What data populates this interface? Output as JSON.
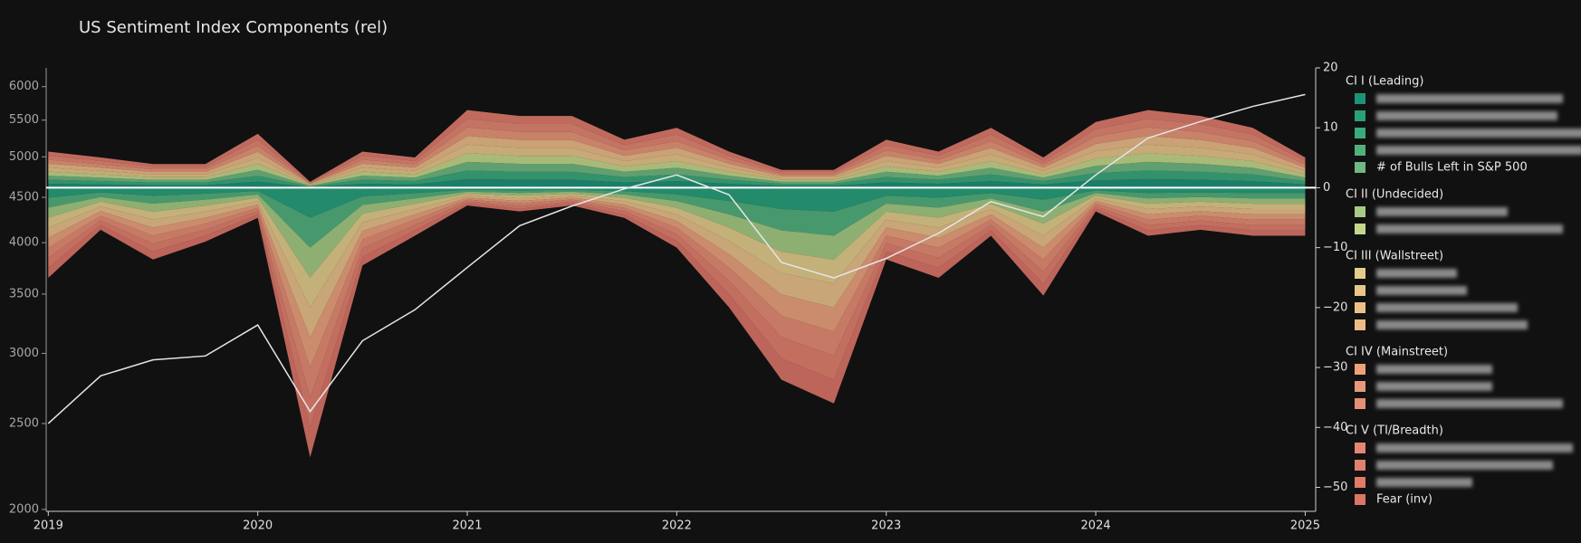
{
  "chart_data": {
    "type": "area",
    "title": "US Sentiment Index Components (rel)",
    "x": [
      2019,
      2019.25,
      2019.5,
      2019.75,
      2020,
      2020.25,
      2020.5,
      2020.75,
      2021,
      2021.25,
      2021.5,
      2021.75,
      2022,
      2022.25,
      2022.5,
      2022.75,
      2023,
      2023.25,
      2023.5,
      2023.75,
      2024,
      2024.25,
      2024.5,
      2024.75,
      2025
    ],
    "xlim": [
      2018.99,
      2025.05
    ],
    "xticks": [
      2019,
      2020,
      2021,
      2022,
      2023,
      2024,
      2025
    ],
    "ylim": [
      1990,
      6300
    ],
    "yticks": [
      2000,
      2500,
      3000,
      3500,
      4000,
      4500,
      5000,
      5500,
      6000
    ],
    "log_scale": true,
    "y2lim": [
      -54,
      20
    ],
    "y2ticks": [
      {
        "value": -50,
        "label": "−50"
      },
      {
        "value": -40,
        "label": "−40"
      },
      {
        "value": -30,
        "label": "−30"
      },
      {
        "value": -20,
        "label": "−20"
      },
      {
        "value": -10,
        "label": "−10"
      },
      0,
      10,
      20
    ],
    "series": [
      {
        "group": "CI I (Leading)",
        "color": "#1e9278",
        "axis": "y2",
        "values": [
          0.67,
          0.56,
          0.44,
          0.44,
          1,
          0.11,
          0.67,
          0.56,
          1.44,
          1.33,
          1.33,
          0.89,
          1.11,
          0.67,
          0.33,
          0.33,
          0.89,
          0.67,
          1.11,
          0.56,
          1.22,
          1.44,
          1.33,
          1.11,
          0.56
        ]
      },
      {
        "group": "CI I (Leading)",
        "color": "#27a07b",
        "axis": "y2",
        "values": [
          -1.67,
          -0.78,
          -1.33,
          -1,
          -0.56,
          -5,
          -1.44,
          -0.89,
          -0.33,
          -0.44,
          -0.33,
          -0.56,
          -1.11,
          -2.22,
          -3.56,
          -4,
          -1.33,
          -1.67,
          -0.89,
          -2,
          -0.44,
          -0.89,
          -0.78,
          -0.89,
          -0.89
        ]
      },
      {
        "group": "CI I (Leading)",
        "color": "#3aa97d",
        "axis": "y2",
        "values": [
          0.67,
          0.56,
          0.44,
          0.44,
          1,
          0.11,
          0.67,
          0.56,
          1.44,
          1.33,
          1.33,
          0.89,
          1.11,
          0.67,
          0.33,
          0.33,
          0.89,
          0.67,
          1.11,
          0.56,
          1.22,
          1.44,
          1.33,
          1.11,
          0.56
        ]
      },
      {
        "group": "CI I (Leading)",
        "color": "#52b07e",
        "axis": "y2",
        "values": [
          -1.67,
          -0.78,
          -1.33,
          -1,
          -0.56,
          -5,
          -1.44,
          -0.89,
          -0.33,
          -0.44,
          -0.33,
          -0.56,
          -1.11,
          -2.22,
          -3.56,
          -4,
          -1.33,
          -1.67,
          -0.89,
          -2,
          -0.44,
          -0.89,
          -0.78,
          -0.89,
          -0.89
        ]
      },
      {
        "group": "CI I (Leading)",
        "name": "# of Bulls Left in S&P 500",
        "color": "#6fb880",
        "axis": "y2",
        "values": [
          0.67,
          0.56,
          0.44,
          0.44,
          1,
          0.11,
          0.67,
          0.56,
          1.44,
          1.33,
          1.33,
          0.89,
          1.11,
          0.67,
          0.33,
          0.33,
          0.89,
          0.67,
          1.11,
          0.56,
          1.22,
          1.44,
          1.33,
          1.11,
          0.56
        ]
      },
      {
        "group": "CI II (Undecided)",
        "color": "#a5cb84",
        "axis": "y2",
        "values": [
          -1.67,
          -0.78,
          -1.33,
          -1,
          -0.56,
          -5,
          -1.44,
          -0.89,
          -0.33,
          -0.44,
          -0.33,
          -0.56,
          -1.11,
          -2.22,
          -3.56,
          -4,
          -1.33,
          -1.67,
          -0.89,
          -2,
          -0.44,
          -0.89,
          -0.78,
          -0.89,
          -0.89
        ]
      },
      {
        "group": "CI II (Undecided)",
        "color": "#c4d78b",
        "axis": "y2",
        "values": [
          0.67,
          0.56,
          0.44,
          0.44,
          1,
          0.11,
          0.67,
          0.56,
          1.44,
          1.33,
          1.33,
          0.89,
          1.11,
          0.67,
          0.33,
          0.33,
          0.89,
          0.67,
          1.11,
          0.56,
          1.22,
          1.44,
          1.33,
          1.11,
          0.56
        ]
      },
      {
        "group": "CI III (Wallstreet)",
        "color": "#e4cc8c",
        "axis": "y2",
        "values": [
          -1.67,
          -0.78,
          -1.33,
          -1,
          -0.56,
          -5,
          -1.44,
          -0.89,
          -0.33,
          -0.44,
          -0.33,
          -0.56,
          -1.11,
          -2.22,
          -3.56,
          -4,
          -1.33,
          -1.67,
          -0.89,
          -2,
          -0.44,
          -0.89,
          -0.78,
          -0.89,
          -0.89
        ]
      },
      {
        "group": "CI III (Wallstreet)",
        "color": "#e8c68a",
        "axis": "y2",
        "values": [
          0.67,
          0.56,
          0.44,
          0.44,
          1,
          0.11,
          0.67,
          0.56,
          1.44,
          1.33,
          1.33,
          0.89,
          1.11,
          0.67,
          0.33,
          0.33,
          0.89,
          0.67,
          1.11,
          0.56,
          1.22,
          1.44,
          1.33,
          1.11,
          0.56
        ]
      },
      {
        "group": "CI III (Wallstreet)",
        "color": "#eac189",
        "axis": "y2",
        "values": [
          -1.67,
          -0.78,
          -1.33,
          -1,
          -0.56,
          -5,
          -1.44,
          -0.89,
          -0.33,
          -0.44,
          -0.33,
          -0.56,
          -1.11,
          -2.22,
          -3.56,
          -4,
          -1.33,
          -1.67,
          -0.89,
          -2,
          -0.44,
          -0.89,
          -0.78,
          -0.89,
          -0.89
        ]
      },
      {
        "group": "CI III (Wallstreet)",
        "color": "#ebbc87",
        "axis": "y2",
        "values": [
          0.67,
          0.56,
          0.44,
          0.44,
          1,
          0.11,
          0.67,
          0.56,
          1.44,
          1.33,
          1.33,
          0.89,
          1.11,
          0.67,
          0.33,
          0.33,
          0.89,
          0.67,
          1.11,
          0.56,
          1.22,
          1.44,
          1.33,
          1.11,
          0.56
        ]
      },
      {
        "group": "CI IV (Mainstreet)",
        "color": "#eba27c",
        "axis": "y2",
        "values": [
          -1.67,
          -0.78,
          -1.33,
          -1,
          -0.56,
          -5,
          -1.44,
          -0.89,
          -0.33,
          -0.44,
          -0.33,
          -0.56,
          -1.11,
          -2.22,
          -3.56,
          -4,
          -1.33,
          -1.67,
          -0.89,
          -2,
          -0.44,
          -0.89,
          -0.78,
          -0.89,
          -0.89
        ]
      },
      {
        "group": "CI IV (Mainstreet)",
        "color": "#e99779",
        "axis": "y2",
        "values": [
          0.67,
          0.56,
          0.44,
          0.44,
          1,
          0.11,
          0.67,
          0.56,
          1.44,
          1.33,
          1.33,
          0.89,
          1.11,
          0.67,
          0.33,
          0.33,
          0.89,
          0.67,
          1.11,
          0.56,
          1.22,
          1.44,
          1.33,
          1.11,
          0.56
        ]
      },
      {
        "group": "CI IV (Mainstreet)",
        "color": "#e68d75",
        "axis": "y2",
        "values": [
          -1.67,
          -0.78,
          -1.33,
          -1,
          -0.56,
          -5,
          -1.44,
          -0.89,
          -0.33,
          -0.44,
          -0.33,
          -0.56,
          -1.11,
          -2.22,
          -3.56,
          -4,
          -1.33,
          -1.67,
          -0.89,
          -2,
          -0.44,
          -0.89,
          -0.78,
          -0.89,
          -0.89
        ]
      },
      {
        "group": "CI V (TI/Breadth)",
        "color": "#e48672",
        "axis": "y2",
        "values": [
          0.67,
          0.56,
          0.44,
          0.44,
          1,
          0.11,
          0.67,
          0.56,
          1.44,
          1.33,
          1.33,
          0.89,
          1.11,
          0.67,
          0.33,
          0.33,
          0.89,
          0.67,
          1.11,
          0.56,
          1.22,
          1.44,
          1.33,
          1.11,
          0.56
        ]
      },
      {
        "group": "CI V (TI/Breadth)",
        "color": "#e2806f",
        "axis": "y2",
        "values": [
          -1.67,
          -0.78,
          -1.33,
          -1,
          -0.56,
          -5,
          -1.44,
          -0.89,
          -0.33,
          -0.44,
          -0.33,
          -0.56,
          -1.11,
          -2.22,
          -3.56,
          -4,
          -1.33,
          -1.67,
          -0.89,
          -2,
          -0.44,
          -0.89,
          -0.78,
          -0.89,
          -0.89
        ]
      },
      {
        "group": "CI V (TI/Breadth)",
        "color": "#df7a6c",
        "axis": "y2",
        "values": [
          0.67,
          0.56,
          0.44,
          0.44,
          1,
          0.11,
          0.67,
          0.56,
          1.44,
          1.33,
          1.33,
          0.89,
          1.11,
          0.67,
          0.33,
          0.33,
          0.89,
          0.67,
          1.11,
          0.56,
          1.22,
          1.44,
          1.33,
          1.11,
          0.56
        ]
      },
      {
        "group": "CI V (TI/Breadth)",
        "name": "Fear (inv)",
        "color": "#dc7468",
        "axis": "y2",
        "values": [
          -1.67,
          -0.78,
          -1.33,
          -1,
          -0.56,
          -5,
          -1.44,
          -0.89,
          -0.33,
          -0.44,
          -0.33,
          -0.56,
          -1.11,
          -2.22,
          -3.56,
          -4,
          -1.33,
          -1.67,
          -0.89,
          -2,
          -0.44,
          -0.89,
          -0.78,
          -0.89,
          -0.89
        ]
      },
      {
        "type": "line",
        "color": "#e6e6e6",
        "axis": "y",
        "values": [
          2500,
          2830,
          2950,
          2980,
          3230,
          2580,
          3100,
          3360,
          3750,
          4180,
          4400,
          4600,
          4770,
          4530,
          3800,
          3650,
          3840,
          4100,
          4450,
          4280,
          4770,
          5250,
          5480,
          5700,
          5880
        ]
      }
    ],
    "zero_line_color": "#ffffff"
  }
}
